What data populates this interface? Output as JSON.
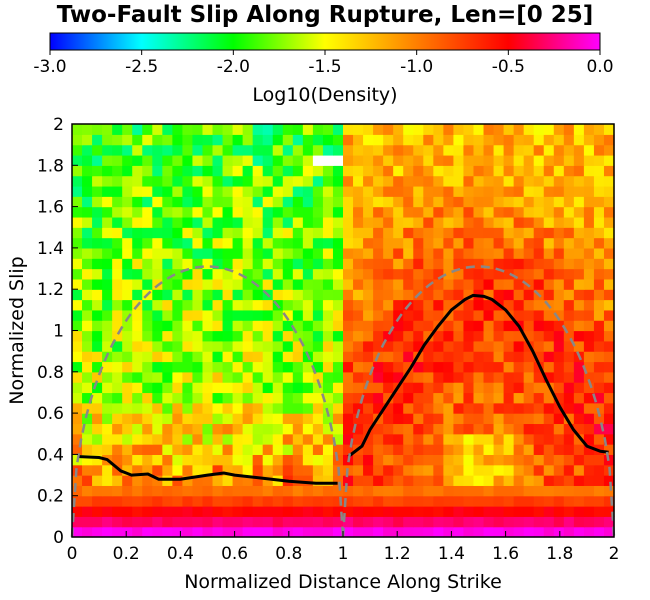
{
  "chart_data": {
    "type": "heatmap",
    "title": "Two-Fault Slip Along Rupture, Len=[0 25]",
    "xlabel": "Normalized Distance Along Strike",
    "ylabel": "Normalized Slip",
    "xlim": [
      0,
      2
    ],
    "ylim": [
      0,
      2
    ],
    "x_ticks": [
      "0",
      "0.2",
      "0.4",
      "0.6",
      "0.8",
      "1",
      "1.2",
      "1.4",
      "1.6",
      "1.8",
      "2"
    ],
    "y_ticks": [
      "0",
      "0.2",
      "0.4",
      "0.6",
      "0.8",
      "1",
      "1.2",
      "1.4",
      "1.6",
      "1.8",
      "2"
    ],
    "colorbar": {
      "label": "Log10(Density)",
      "range": [
        -3.0,
        0.0
      ],
      "ticks": [
        "-3.0",
        "-2.5",
        "-2.0",
        "-1.5",
        "-1.0",
        "-0.5",
        "0.0"
      ],
      "colors": [
        "#0000ff",
        "#00ffff",
        "#00ff00",
        "#ffff00",
        "#ff7f00",
        "#ff0000",
        "#ff00ff"
      ]
    },
    "grid": false,
    "grid_cells": [
      54,
      40
    ],
    "density_model": {
      "fault1_x": [
        0,
        1
      ],
      "fault2_x": [
        1,
        2
      ],
      "fault1_mean_log10": -1.7,
      "fault2_mean_log10": -1.05,
      "low_slip_band_log10": [
        -0.05,
        -0.3,
        -0.5,
        -0.75,
        -0.95
      ]
    },
    "series": [
      {
        "style": "solid",
        "color": "#000000",
        "x": [
          0.02,
          0.1,
          0.13,
          0.18,
          0.22,
          0.28,
          0.32,
          0.4,
          0.5,
          0.56,
          0.6,
          0.7,
          0.8,
          0.9,
          0.98
        ],
        "y": [
          0.39,
          0.385,
          0.375,
          0.32,
          0.3,
          0.305,
          0.28,
          0.28,
          0.3,
          0.31,
          0.3,
          0.285,
          0.27,
          0.26,
          0.26
        ]
      },
      {
        "style": "solid",
        "color": "#000000",
        "x": [
          1.02,
          1.07,
          1.1,
          1.15,
          1.2,
          1.25,
          1.3,
          1.35,
          1.4,
          1.45,
          1.48,
          1.52,
          1.55,
          1.6,
          1.65,
          1.7,
          1.75,
          1.8,
          1.85,
          1.9,
          1.95,
          1.98
        ],
        "y": [
          0.39,
          0.44,
          0.52,
          0.62,
          0.72,
          0.82,
          0.93,
          1.02,
          1.1,
          1.15,
          1.17,
          1.165,
          1.15,
          1.1,
          1.02,
          0.9,
          0.76,
          0.63,
          0.52,
          0.44,
          0.415,
          0.41
        ]
      },
      {
        "style": "dashed",
        "color": "#888888",
        "shape": "semi-ellipse",
        "x_range": [
          0,
          1
        ],
        "peak": 1.31
      },
      {
        "style": "dashed",
        "color": "#888888",
        "shape": "semi-ellipse",
        "x_range": [
          1,
          2
        ],
        "peak": 1.31
      }
    ]
  }
}
